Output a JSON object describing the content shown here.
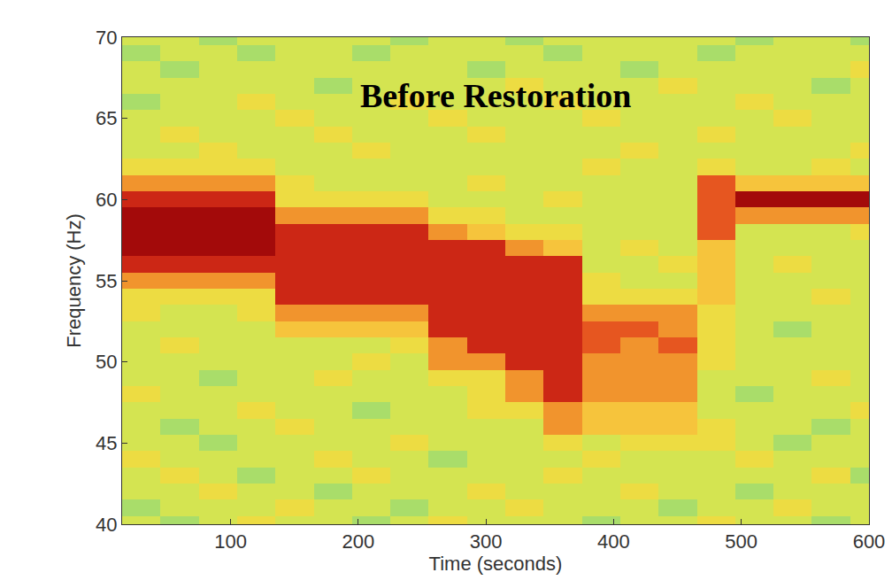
{
  "chart_data": {
    "type": "heatmap",
    "title": "Before Restoration",
    "x_label": "Time (seconds)",
    "y_label": "Frequency (Hz)",
    "x": [
      30,
      60,
      90,
      120,
      150,
      180,
      210,
      240,
      270,
      300,
      330,
      360,
      390,
      420,
      450,
      480,
      510,
      540,
      570,
      600
    ],
    "y": [
      40,
      41,
      42,
      43,
      44,
      45,
      46,
      47,
      48,
      49,
      50,
      51,
      52,
      53,
      54,
      55,
      56,
      57,
      58,
      59,
      60,
      61,
      62,
      63,
      64,
      65,
      66,
      67,
      68,
      69,
      70
    ],
    "cells": [
      [
        4,
        3,
        4,
        5,
        4,
        4,
        3,
        4,
        5,
        4,
        4,
        4,
        3,
        4,
        4,
        5,
        4,
        4,
        3,
        4
      ],
      [
        3,
        4,
        4,
        4,
        5,
        4,
        4,
        3,
        4,
        4,
        5,
        4,
        4,
        4,
        3,
        4,
        4,
        5,
        4,
        4
      ],
      [
        4,
        4,
        5,
        4,
        4,
        3,
        4,
        4,
        4,
        5,
        4,
        4,
        4,
        5,
        4,
        4,
        3,
        4,
        4,
        4
      ],
      [
        4,
        5,
        4,
        3,
        4,
        4,
        5,
        4,
        4,
        4,
        4,
        5,
        4,
        4,
        4,
        4,
        4,
        4,
        5,
        3
      ],
      [
        5,
        4,
        4,
        4,
        4,
        5,
        4,
        4,
        3,
        4,
        4,
        4,
        5,
        4,
        4,
        4,
        5,
        4,
        4,
        4
      ],
      [
        4,
        4,
        3,
        4,
        4,
        4,
        4,
        5,
        4,
        4,
        4,
        5,
        4,
        5,
        5,
        5,
        4,
        3,
        4,
        4
      ],
      [
        4,
        3,
        4,
        4,
        5,
        4,
        4,
        4,
        4,
        4,
        4,
        7,
        6,
        6,
        6,
        5,
        4,
        4,
        3,
        4
      ],
      [
        4,
        4,
        4,
        5,
        4,
        4,
        3,
        4,
        4,
        5,
        5,
        7,
        6,
        6,
        6,
        4,
        4,
        4,
        4,
        5
      ],
      [
        5,
        4,
        4,
        4,
        4,
        4,
        4,
        4,
        4,
        5,
        7,
        9,
        7,
        7,
        7,
        4,
        3,
        4,
        4,
        4
      ],
      [
        4,
        4,
        3,
        4,
        4,
        5,
        4,
        4,
        5,
        5,
        7,
        9,
        7,
        7,
        7,
        4,
        4,
        4,
        5,
        4
      ],
      [
        4,
        4,
        4,
        4,
        4,
        4,
        5,
        4,
        7,
        7,
        9,
        9,
        7,
        7,
        7,
        5,
        4,
        4,
        4,
        4
      ],
      [
        4,
        5,
        4,
        4,
        4,
        4,
        4,
        5,
        7,
        9,
        9,
        9,
        8,
        7,
        8,
        5,
        4,
        4,
        4,
        4
      ],
      [
        4,
        4,
        4,
        4,
        6,
        6,
        6,
        6,
        9,
        9,
        9,
        9,
        8,
        8,
        7,
        5,
        4,
        3,
        4,
        4
      ],
      [
        5,
        4,
        4,
        5,
        7,
        7,
        7,
        7,
        9,
        9,
        9,
        9,
        7,
        7,
        7,
        5,
        4,
        4,
        4,
        4
      ],
      [
        5,
        5,
        5,
        5,
        9,
        9,
        9,
        9,
        9,
        9,
        9,
        9,
        5,
        5,
        5,
        6,
        4,
        4,
        5,
        4
      ],
      [
        7,
        7,
        7,
        7,
        9,
        9,
        9,
        9,
        9,
        9,
        9,
        9,
        5,
        4,
        4,
        6,
        4,
        4,
        4,
        4
      ],
      [
        9,
        9,
        9,
        9,
        9,
        9,
        9,
        9,
        9,
        9,
        9,
        9,
        4,
        4,
        5,
        6,
        4,
        5,
        4,
        4
      ],
      [
        10,
        10,
        10,
        10,
        9,
        9,
        9,
        9,
        9,
        9,
        7,
        6,
        4,
        5,
        4,
        6,
        4,
        4,
        4,
        4
      ],
      [
        10,
        10,
        10,
        10,
        9,
        9,
        9,
        9,
        7,
        6,
        5,
        5,
        4,
        4,
        4,
        8,
        4,
        4,
        4,
        5
      ],
      [
        10,
        10,
        10,
        10,
        7,
        7,
        7,
        7,
        5,
        5,
        4,
        4,
        4,
        4,
        4,
        8,
        7,
        7,
        7,
        7
      ],
      [
        9,
        9,
        9,
        9,
        5,
        5,
        5,
        5,
        4,
        4,
        4,
        5,
        4,
        4,
        4,
        8,
        10,
        10,
        10,
        10
      ],
      [
        7,
        7,
        7,
        7,
        5,
        4,
        4,
        4,
        4,
        5,
        4,
        4,
        4,
        4,
        4,
        8,
        6,
        6,
        6,
        6
      ],
      [
        5,
        5,
        5,
        5,
        4,
        4,
        4,
        4,
        4,
        4,
        4,
        4,
        5,
        4,
        4,
        5,
        4,
        4,
        5,
        4
      ],
      [
        4,
        4,
        5,
        4,
        4,
        4,
        5,
        4,
        4,
        4,
        4,
        4,
        4,
        5,
        4,
        4,
        4,
        4,
        4,
        5
      ],
      [
        4,
        5,
        4,
        4,
        4,
        5,
        4,
        4,
        4,
        5,
        4,
        4,
        4,
        4,
        4,
        5,
        4,
        4,
        4,
        4
      ],
      [
        4,
        4,
        4,
        4,
        5,
        4,
        4,
        4,
        5,
        4,
        4,
        4,
        5,
        4,
        4,
        4,
        4,
        5,
        4,
        4
      ],
      [
        3,
        4,
        4,
        5,
        4,
        4,
        4,
        5,
        4,
        4,
        4,
        5,
        4,
        4,
        4,
        4,
        5,
        4,
        4,
        4
      ],
      [
        4,
        4,
        4,
        4,
        4,
        3,
        4,
        4,
        4,
        4,
        5,
        4,
        4,
        4,
        5,
        4,
        4,
        4,
        3,
        4
      ],
      [
        4,
        3,
        4,
        4,
        4,
        4,
        4,
        4,
        4,
        3,
        4,
        4,
        4,
        3,
        4,
        4,
        4,
        4,
        4,
        5
      ],
      [
        3,
        4,
        4,
        3,
        4,
        4,
        3,
        4,
        4,
        4,
        4,
        3,
        4,
        4,
        4,
        3,
        4,
        4,
        4,
        4
      ],
      [
        4,
        4,
        3,
        4,
        4,
        4,
        4,
        3,
        4,
        4,
        3,
        4,
        4,
        4,
        4,
        4,
        3,
        4,
        4,
        3
      ]
    ],
    "zlim": [
      0,
      10
    ],
    "xlim": [
      15,
      600
    ],
    "ylim": [
      40,
      70
    ],
    "xticks": [
      100,
      200,
      300,
      400,
      500,
      600
    ],
    "yticks": [
      40,
      45,
      50,
      55,
      60,
      65,
      70
    ],
    "grid": false
  }
}
